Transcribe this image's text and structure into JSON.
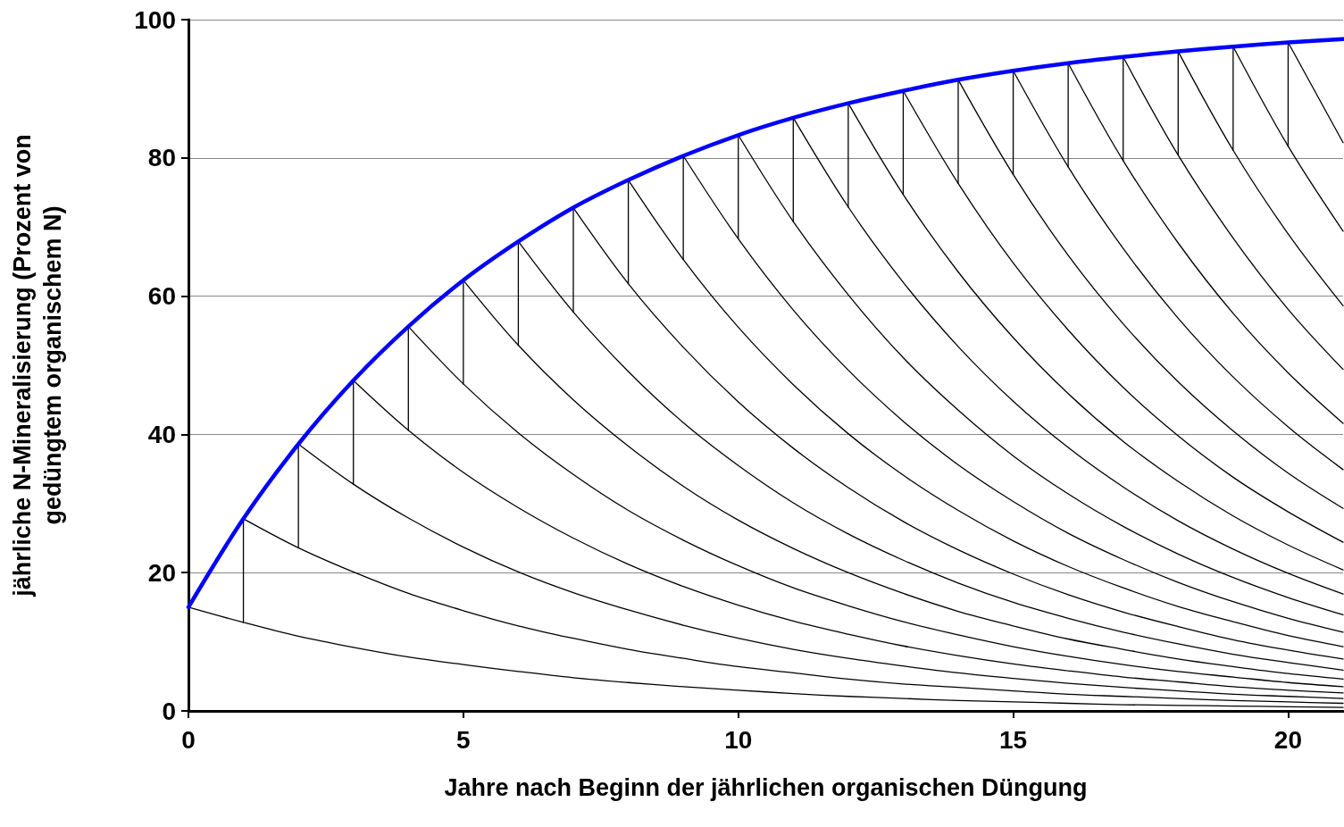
{
  "chart_data": {
    "type": "line",
    "xlabel": "Jahre nach Beginn der jährlichen organischen Düngung",
    "ylabel": "jährliche N-Mineralisierung (Prozent von\ngedüngtem organischem N)",
    "xlim": [
      0,
      21
    ],
    "xticks": [
      0,
      5,
      10,
      15,
      20
    ],
    "ylim": [
      0,
      100
    ],
    "yticks": [
      0,
      20,
      40,
      60,
      80,
      100
    ],
    "grid": "y",
    "marker": "none",
    "line_style": "solid",
    "series": [
      {
        "color": "#0000ff",
        "x": [
          0,
          1,
          2,
          3,
          4,
          5,
          6,
          7,
          8,
          9,
          10,
          11,
          12,
          13,
          14,
          15,
          16,
          17,
          18,
          19,
          20,
          21
        ],
        "values": [
          15,
          27.8,
          38.6,
          47.8,
          55.6,
          62.3,
          67.9,
          72.8,
          76.8,
          80.3,
          83.3,
          85.8,
          87.9,
          89.7,
          91.3,
          92.6,
          93.7,
          94.6,
          95.4,
          96.1,
          96.7,
          97.2
        ]
      },
      {
        "color": "#000000",
        "x": [
          0,
          1,
          2,
          3,
          4,
          5,
          6,
          7,
          8,
          9,
          10,
          11,
          12,
          13,
          14,
          15,
          16,
          17,
          18,
          19,
          20,
          21
        ],
        "values": [
          15,
          12.8,
          10.8,
          9.2,
          7.8,
          6.7,
          5.7,
          4.8,
          4.1,
          3.5,
          3.0,
          2.5,
          2.1,
          1.8,
          1.5,
          1.3,
          1.1,
          0.9,
          0.8,
          0.7,
          0.6,
          0.5
        ]
      },
      {
        "color": "#000000",
        "x": [
          1,
          2,
          3,
          4,
          5,
          6,
          7,
          8,
          9,
          10,
          11,
          12,
          13,
          14,
          15,
          16,
          17,
          18,
          19,
          20,
          21
        ],
        "values": [
          27.8,
          23.6,
          20.1,
          17.0,
          14.5,
          12.3,
          10.5,
          8.9,
          7.6,
          6.4,
          5.5,
          4.6,
          3.9,
          3.4,
          2.9,
          2.4,
          2.1,
          1.8,
          1.5,
          1.3,
          1.1
        ]
      },
      {
        "color": "#000000",
        "x": [
          2,
          3,
          4,
          5,
          6,
          7,
          8,
          9,
          10,
          11,
          12,
          13,
          14,
          15,
          16,
          17,
          18,
          19,
          20,
          21
        ],
        "values": [
          38.6,
          32.8,
          27.9,
          23.7,
          20.1,
          17.1,
          14.6,
          12.4,
          10.5,
          8.9,
          7.6,
          6.5,
          5.5,
          4.7,
          4.0,
          3.4,
          2.9,
          2.4,
          2.1,
          1.8
        ]
      },
      {
        "color": "#000000",
        "x": [
          3,
          4,
          5,
          6,
          7,
          8,
          9,
          10,
          11,
          12,
          13,
          14,
          15,
          16,
          17,
          18,
          19,
          20,
          21
        ],
        "values": [
          47.8,
          40.6,
          34.5,
          29.4,
          25.0,
          21.2,
          18.0,
          15.3,
          13.0,
          11.1,
          9.4,
          8.0,
          6.8,
          5.8,
          4.9,
          4.2,
          3.5,
          3.0,
          2.6
        ]
      },
      {
        "color": "#000000",
        "x": [
          4,
          5,
          6,
          7,
          8,
          9,
          10,
          11,
          12,
          13,
          14,
          15,
          16,
          17,
          18,
          19,
          20,
          21
        ],
        "values": [
          55.6,
          47.3,
          40.2,
          34.2,
          29.0,
          24.7,
          21.0,
          17.8,
          15.2,
          12.9,
          11.0,
          9.3,
          7.9,
          6.7,
          5.7,
          4.9,
          4.1,
          3.5
        ]
      },
      {
        "color": "#000000",
        "x": [
          5,
          6,
          7,
          8,
          9,
          10,
          11,
          12,
          13,
          14,
          15,
          16,
          17,
          18,
          19,
          20,
          21
        ],
        "values": [
          62.3,
          52.9,
          45.0,
          38.3,
          32.5,
          27.6,
          23.5,
          20.0,
          17.0,
          14.4,
          12.3,
          10.4,
          8.9,
          7.5,
          6.4,
          5.4,
          4.6
        ]
      },
      {
        "color": "#000000",
        "x": [
          6,
          7,
          8,
          9,
          10,
          11,
          12,
          13,
          14,
          15,
          16,
          17,
          18,
          19,
          20,
          21
        ],
        "values": [
          67.9,
          57.7,
          49.1,
          41.7,
          35.5,
          30.1,
          25.6,
          21.8,
          18.5,
          15.7,
          13.4,
          11.4,
          9.7,
          8.2,
          7.0,
          5.9
        ]
      },
      {
        "color": "#000000",
        "x": [
          7,
          8,
          9,
          10,
          11,
          12,
          13,
          14,
          15,
          16,
          17,
          18,
          19,
          20,
          21
        ],
        "values": [
          72.8,
          61.8,
          52.6,
          44.7,
          38.0,
          32.3,
          27.4,
          23.3,
          19.8,
          16.8,
          14.3,
          12.2,
          10.3,
          8.8,
          7.5
        ]
      },
      {
        "color": "#000000",
        "x": [
          8,
          9,
          10,
          11,
          12,
          13,
          14,
          15,
          16,
          17,
          18,
          19,
          20,
          21
        ],
        "values": [
          76.8,
          65.3,
          55.5,
          47.2,
          40.1,
          34.1,
          29.0,
          24.6,
          20.9,
          17.8,
          15.1,
          12.9,
          10.9,
          9.3
        ]
      },
      {
        "color": "#000000",
        "x": [
          9,
          10,
          11,
          12,
          13,
          14,
          15,
          16,
          17,
          18,
          19,
          20,
          21
        ],
        "values": [
          80.3,
          68.3,
          58.0,
          49.3,
          41.9,
          35.6,
          30.3,
          25.7,
          21.9,
          18.6,
          15.8,
          13.4,
          11.4
        ]
      },
      {
        "color": "#000000",
        "x": [
          10,
          11,
          12,
          13,
          14,
          15,
          16,
          17,
          18,
          19,
          20,
          21
        ],
        "values": [
          83.3,
          70.8,
          60.2,
          51.1,
          43.5,
          36.9,
          31.4,
          26.7,
          22.7,
          19.3,
          16.4,
          13.9
        ]
      },
      {
        "color": "#000000",
        "x": [
          11,
          12,
          13,
          14,
          15,
          16,
          17,
          18,
          19,
          20,
          21
        ],
        "values": [
          85.8,
          72.9,
          62.0,
          52.7,
          44.8,
          38.1,
          32.4,
          27.5,
          23.4,
          19.9,
          16.9
        ]
      },
      {
        "color": "#000000",
        "x": [
          12,
          13,
          14,
          15,
          16,
          17,
          18,
          19,
          20,
          21
        ],
        "values": [
          87.9,
          74.7,
          63.5,
          54.0,
          45.9,
          39.0,
          33.2,
          28.2,
          24.0,
          20.4
        ]
      },
      {
        "color": "#000000",
        "x": [
          13,
          14,
          15,
          16,
          17,
          18,
          19,
          20,
          21
        ],
        "values": [
          89.7,
          76.3,
          64.8,
          55.1,
          46.8,
          39.8,
          33.8,
          28.8,
          24.4
        ]
      },
      {
        "color": "#000000",
        "x": [
          14,
          15,
          16,
          17,
          18,
          19,
          20,
          21
        ],
        "values": [
          91.3,
          77.6,
          65.9,
          56.0,
          47.6,
          40.5,
          34.4,
          29.3
        ]
      },
      {
        "color": "#000000",
        "x": [
          15,
          16,
          17,
          18,
          19,
          20,
          21
        ],
        "values": [
          92.6,
          78.7,
          66.9,
          56.8,
          48.3,
          41.1,
          34.9
        ]
      },
      {
        "color": "#000000",
        "x": [
          16,
          17,
          18,
          19,
          20,
          21
        ],
        "values": [
          93.7,
          79.6,
          67.7,
          57.5,
          48.9,
          41.6
        ]
      },
      {
        "color": "#000000",
        "x": [
          17,
          18,
          19,
          20,
          21
        ],
        "values": [
          94.6,
          80.4,
          68.4,
          58.1,
          49.4
        ]
      },
      {
        "color": "#000000",
        "x": [
          18,
          19,
          20,
          21
        ],
        "values": [
          95.4,
          81.1,
          69.0,
          58.6
        ]
      },
      {
        "color": "#000000",
        "x": [
          19,
          20,
          21
        ],
        "values": [
          96.1,
          81.7,
          69.4
        ]
      },
      {
        "color": "#000000",
        "x": [
          20,
          21
        ],
        "values": [
          96.7,
          82.2
        ]
      },
      {
        "color": "#000000",
        "x": [
          1,
          1
        ],
        "values": [
          12.8,
          27.8
        ]
      },
      {
        "color": "#000000",
        "x": [
          2,
          2
        ],
        "values": [
          23.6,
          38.6
        ]
      },
      {
        "color": "#000000",
        "x": [
          3,
          3
        ],
        "values": [
          32.8,
          47.8
        ]
      },
      {
        "color": "#000000",
        "x": [
          4,
          4
        ],
        "values": [
          40.6,
          55.6
        ]
      },
      {
        "color": "#000000",
        "x": [
          5,
          5
        ],
        "values": [
          47.3,
          62.3
        ]
      },
      {
        "color": "#000000",
        "x": [
          6,
          6
        ],
        "values": [
          52.9,
          67.9
        ]
      },
      {
        "color": "#000000",
        "x": [
          7,
          7
        ],
        "values": [
          57.7,
          72.8
        ]
      },
      {
        "color": "#000000",
        "x": [
          8,
          8
        ],
        "values": [
          61.8,
          76.8
        ]
      },
      {
        "color": "#000000",
        "x": [
          9,
          9
        ],
        "values": [
          65.3,
          80.3
        ]
      },
      {
        "color": "#000000",
        "x": [
          10,
          10
        ],
        "values": [
          68.3,
          83.3
        ]
      },
      {
        "color": "#000000",
        "x": [
          11,
          11
        ],
        "values": [
          70.8,
          85.8
        ]
      },
      {
        "color": "#000000",
        "x": [
          12,
          12
        ],
        "values": [
          72.9,
          87.9
        ]
      },
      {
        "color": "#000000",
        "x": [
          13,
          13
        ],
        "values": [
          74.7,
          89.7
        ]
      },
      {
        "color": "#000000",
        "x": [
          14,
          14
        ],
        "values": [
          76.3,
          91.3
        ]
      },
      {
        "color": "#000000",
        "x": [
          15,
          15
        ],
        "values": [
          77.6,
          92.6
        ]
      },
      {
        "color": "#000000",
        "x": [
          16,
          16
        ],
        "values": [
          78.7,
          93.7
        ]
      },
      {
        "color": "#000000",
        "x": [
          17,
          17
        ],
        "values": [
          79.6,
          94.6
        ]
      },
      {
        "color": "#000000",
        "x": [
          18,
          18
        ],
        "values": [
          80.4,
          95.4
        ]
      },
      {
        "color": "#000000",
        "x": [
          19,
          19
        ],
        "values": [
          81.1,
          96.1
        ]
      },
      {
        "color": "#000000",
        "x": [
          20,
          20
        ],
        "values": [
          81.7,
          96.7
        ]
      }
    ]
  }
}
